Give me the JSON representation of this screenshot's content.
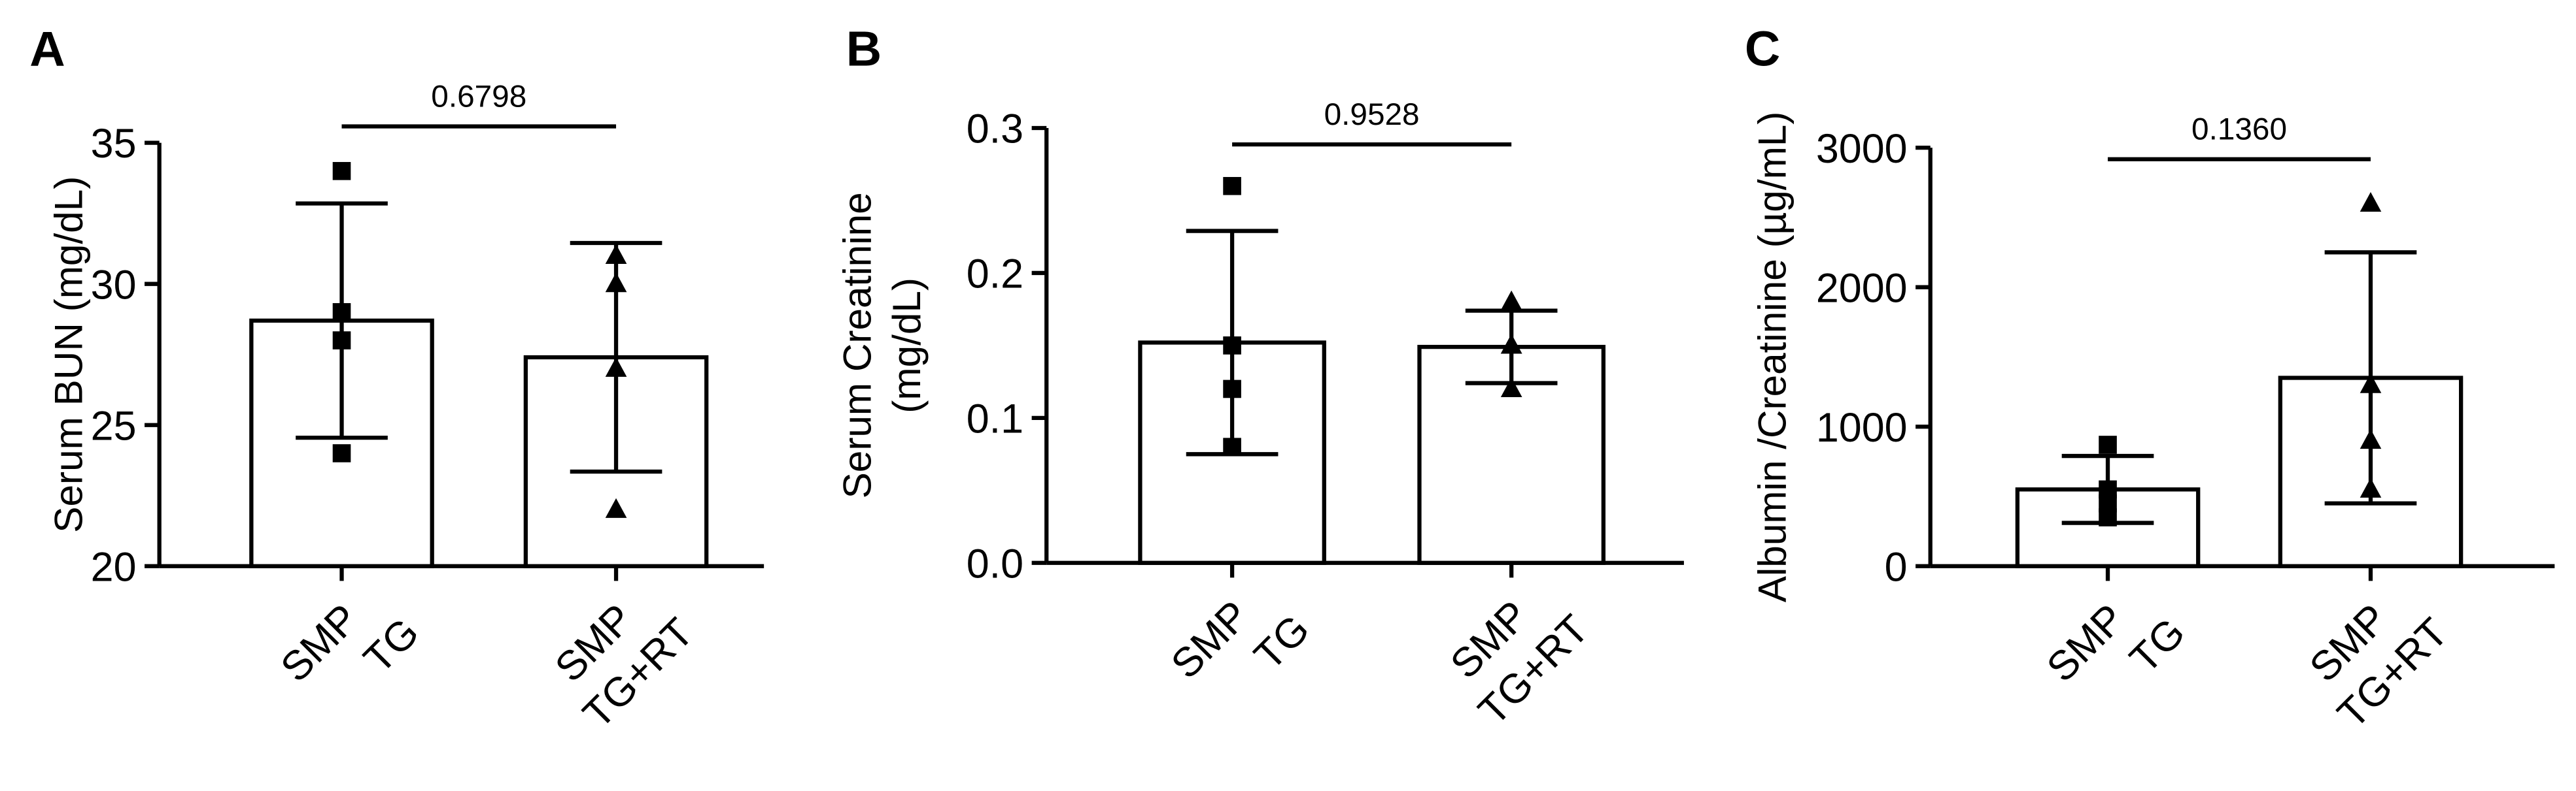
{
  "chart_data": [
    {
      "type": "bar",
      "panel": "A",
      "ylabel": [
        "Serum BUN (mg/dL)"
      ],
      "categories": [
        [
          "SMP",
          "TG"
        ],
        [
          "SMP",
          "TG+RT"
        ]
      ],
      "values": [
        28.7,
        27.4
      ],
      "errors": [
        4.15,
        4.05
      ],
      "points": [
        [
          34,
          29,
          28,
          24
        ],
        [
          31,
          30,
          27,
          22
        ]
      ],
      "markers": [
        "square",
        "triangle"
      ],
      "annotation": "0.6798",
      "ylim": [
        20,
        35
      ],
      "yticks": [
        20,
        25,
        30,
        35
      ]
    },
    {
      "type": "bar",
      "panel": "B",
      "ylabel": [
        "Serum Creatinine",
        "(mg/dL)"
      ],
      "categories": [
        [
          "SMP",
          "TG"
        ],
        [
          "SMP",
          "TG+RT"
        ]
      ],
      "values": [
        0.152,
        0.149
      ],
      "errors": [
        0.077,
        0.025
      ],
      "points": [
        [
          0.26,
          0.15,
          0.12,
          0.08
        ],
        [
          0.18,
          0.15,
          0.15,
          0.12
        ]
      ],
      "markers": [
        "square",
        "triangle"
      ],
      "annotation": "0.9528",
      "ylim": [
        0,
        0.3
      ],
      "yticks": [
        {
          "value": 0,
          "label": "0.0"
        },
        0.1,
        0.2,
        0.3
      ]
    },
    {
      "type": "bar",
      "panel": "C",
      "ylabel": [
        "Albumin /Creatinine (µg/mL)"
      ],
      "categories": [
        [
          "SMP",
          "TG"
        ],
        [
          "SMP",
          "TG+RT"
        ]
      ],
      "values": [
        550,
        1350
      ],
      "errors": [
        240,
        900
      ],
      "points": [
        [
          870,
          550,
          450,
          350
        ],
        [
          2600,
          1300,
          900,
          550
        ]
      ],
      "markers": [
        "square",
        "triangle"
      ],
      "annotation": "0.1360",
      "ylim": [
        0,
        3000
      ],
      "yticks": [
        0,
        1000,
        2000,
        3000
      ]
    }
  ]
}
